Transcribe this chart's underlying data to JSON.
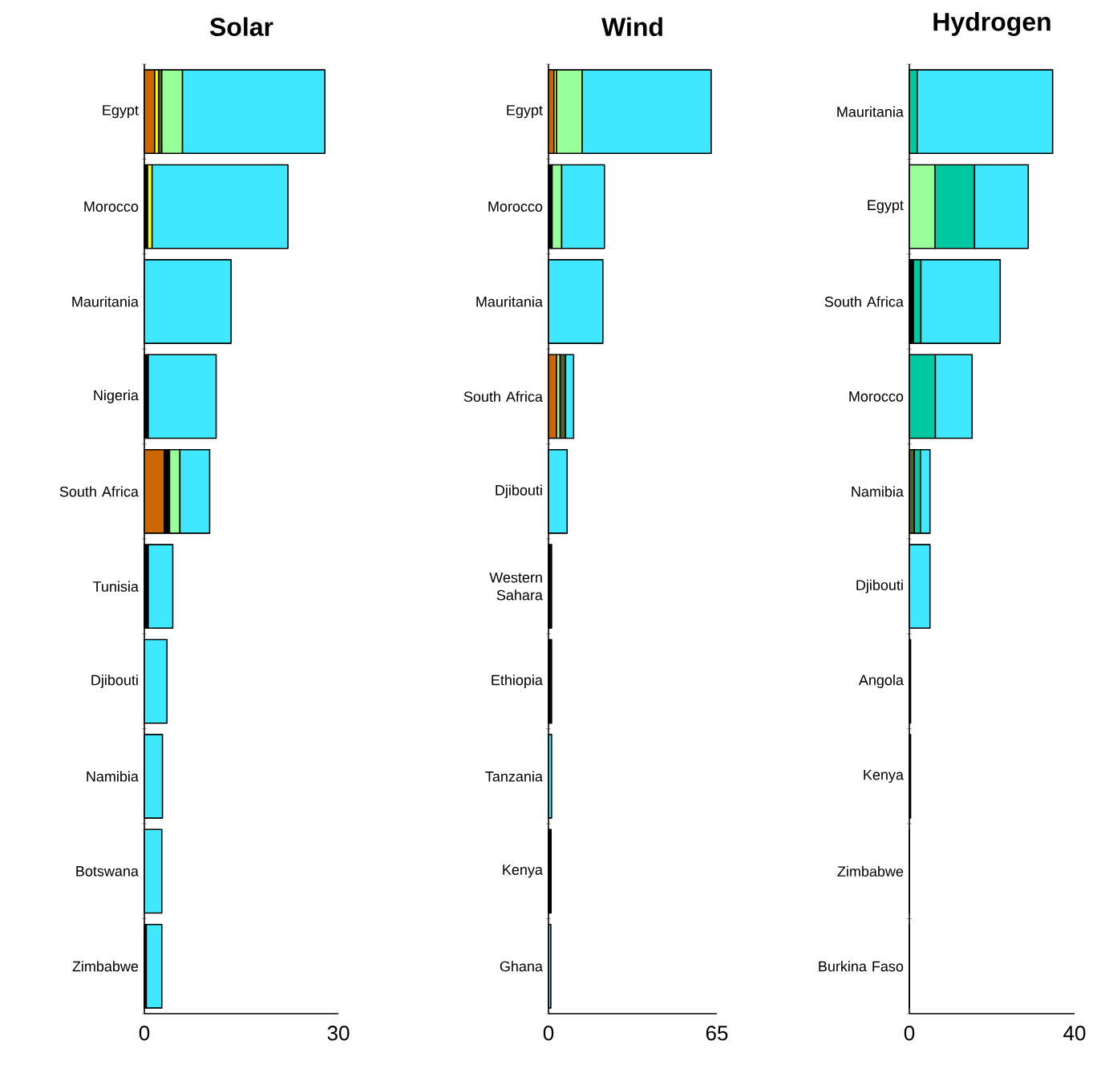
{
  "chart_data": [
    {
      "type": "bar",
      "orientation": "horizontal",
      "stacked": true,
      "title": "Solar",
      "categories": [
        "Egypt",
        "Morocco",
        "Mauritania",
        "Nigeria",
        "South Africa",
        "Tunisia",
        "Djibouti",
        "Namibia",
        "Botswana",
        "Zimbabwe"
      ],
      "xlim": [
        0,
        30
      ],
      "xticks": [
        0,
        30
      ],
      "series": [
        {
          "color": "#cc6600",
          "values": [
            1.6,
            null,
            null,
            null,
            3.1,
            null,
            null,
            null,
            null,
            null
          ]
        },
        {
          "color": "#000000",
          "values": [
            null,
            0.5,
            null,
            0.6,
            0.8,
            0.6,
            null,
            null,
            null,
            0.3
          ]
        },
        {
          "color": "#ffff00",
          "values": [
            0.6,
            0.7,
            null,
            null,
            null,
            null,
            null,
            null,
            null,
            null
          ]
        },
        {
          "color": "#4f6228",
          "values": [
            0.5,
            null,
            null,
            null,
            null,
            null,
            null,
            null,
            null,
            null
          ]
        },
        {
          "color": "#99ff99",
          "values": [
            3.2,
            null,
            null,
            null,
            1.6,
            null,
            null,
            null,
            null,
            null
          ]
        },
        {
          "color": "#40e8ff",
          "values": [
            22.0,
            21.0,
            13.4,
            10.5,
            4.6,
            3.8,
            3.5,
            2.8,
            2.7,
            2.4
          ]
        }
      ]
    },
    {
      "type": "bar",
      "orientation": "horizontal",
      "stacked": true,
      "title": "Wind",
      "categories": [
        "Egypt",
        "Morocco",
        "Mauritania",
        "South Africa",
        "Djibouti",
        "Western Sahara",
        "Ethiopia",
        "Tanzania",
        "Kenya",
        "Ghana"
      ],
      "xlim": [
        0,
        65
      ],
      "xticks": [
        0,
        65
      ],
      "series": [
        {
          "color": "#cc6600",
          "values": [
            2.1,
            null,
            null,
            3.1,
            null,
            null,
            null,
            null,
            null,
            null
          ]
        },
        {
          "color": "#000000",
          "values": [
            null,
            1.4,
            null,
            null,
            null,
            1.2,
            1.2,
            null,
            1.0,
            null
          ]
        },
        {
          "color": "#ffff00",
          "values": [
            1.0,
            null,
            null,
            null,
            null,
            null,
            null,
            null,
            null,
            null
          ]
        },
        {
          "color": "#99ff99",
          "values": [
            9.9,
            3.7,
            null,
            1.4,
            null,
            null,
            null,
            null,
            null,
            null
          ]
        },
        {
          "color": "#4f6228",
          "values": [
            null,
            null,
            null,
            2.1,
            null,
            null,
            null,
            null,
            null,
            null
          ]
        },
        {
          "color": "#40e8ff",
          "values": [
            49.8,
            16.5,
            21.0,
            3.1,
            7.2,
            null,
            null,
            1.2,
            null,
            0.9
          ]
        }
      ]
    },
    {
      "type": "bar",
      "orientation": "horizontal",
      "stacked": true,
      "title": "Hydrogen",
      "categories": [
        "Mauritania",
        "Egypt",
        "South Africa",
        "Morocco",
        "Namibia",
        "Djibouti",
        "Angola",
        "Kenya",
        "Zimbabwe",
        "Burkina Faso"
      ],
      "xlim": [
        0,
        40
      ],
      "xticks": [
        0,
        40
      ],
      "series": [
        {
          "color": "#000000",
          "values": [
            null,
            null,
            1.0,
            null,
            null,
            null,
            0.3,
            0.3,
            0,
            0
          ]
        },
        {
          "color": "#4f6228",
          "values": [
            null,
            null,
            null,
            null,
            1.2,
            null,
            null,
            null,
            null,
            null
          ]
        },
        {
          "color": "#99ff99",
          "values": [
            null,
            6.2,
            null,
            null,
            null,
            null,
            null,
            null,
            null,
            null
          ]
        },
        {
          "color": "#00c8a0",
          "values": [
            1.9,
            9.6,
            1.8,
            6.3,
            1.5,
            null,
            null,
            null,
            null,
            null
          ]
        },
        {
          "color": "#40e8ff",
          "values": [
            32.8,
            13.0,
            19.2,
            8.9,
            2.3,
            5.0,
            null,
            null,
            null,
            null
          ]
        }
      ]
    }
  ]
}
